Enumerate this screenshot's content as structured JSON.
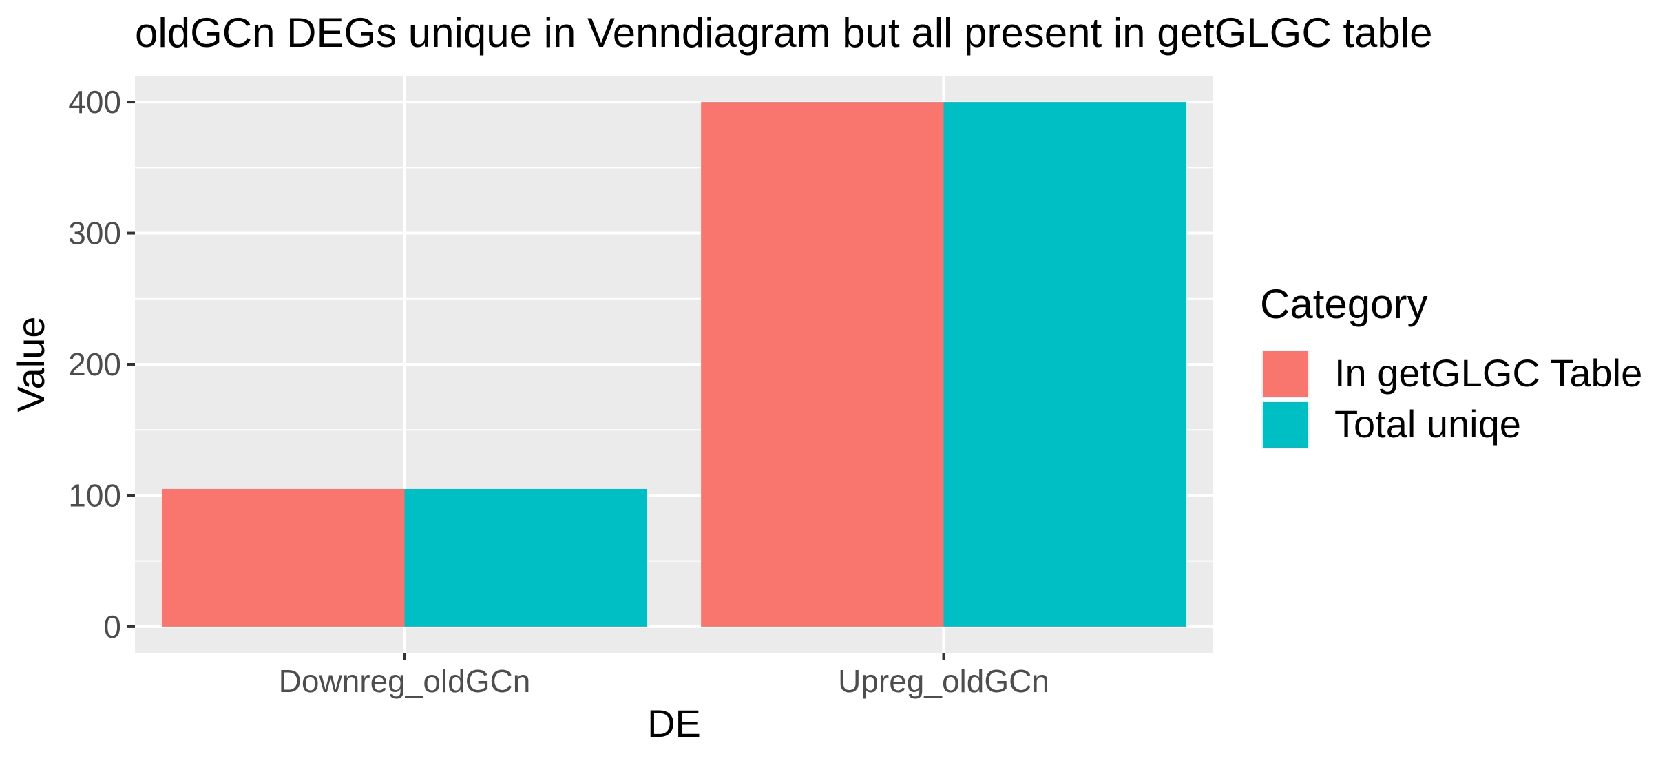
{
  "chart_data": {
    "type": "bar",
    "title": "oldGCn DEGs unique in Venndiagram but all present in getGLGC table",
    "xlabel": "DE",
    "ylabel": "Value",
    "categories": [
      "Downreg_oldGCn",
      "Upreg_oldGCn"
    ],
    "series": [
      {
        "name": "In getGLGC Table",
        "values": [
          105,
          400
        ],
        "color": "#F8766D"
      },
      {
        "name": "Total uniqe",
        "values": [
          105,
          400
        ],
        "color": "#00BFC4"
      }
    ],
    "ylim": [
      -20,
      420
    ],
    "yticks": [
      "0",
      "100",
      "200",
      "300",
      "400"
    ],
    "legend": {
      "title": "Category",
      "placement": "right"
    },
    "grid": true,
    "panel_color": "#EBEBEB",
    "grid_color": "#FFFFFF"
  }
}
